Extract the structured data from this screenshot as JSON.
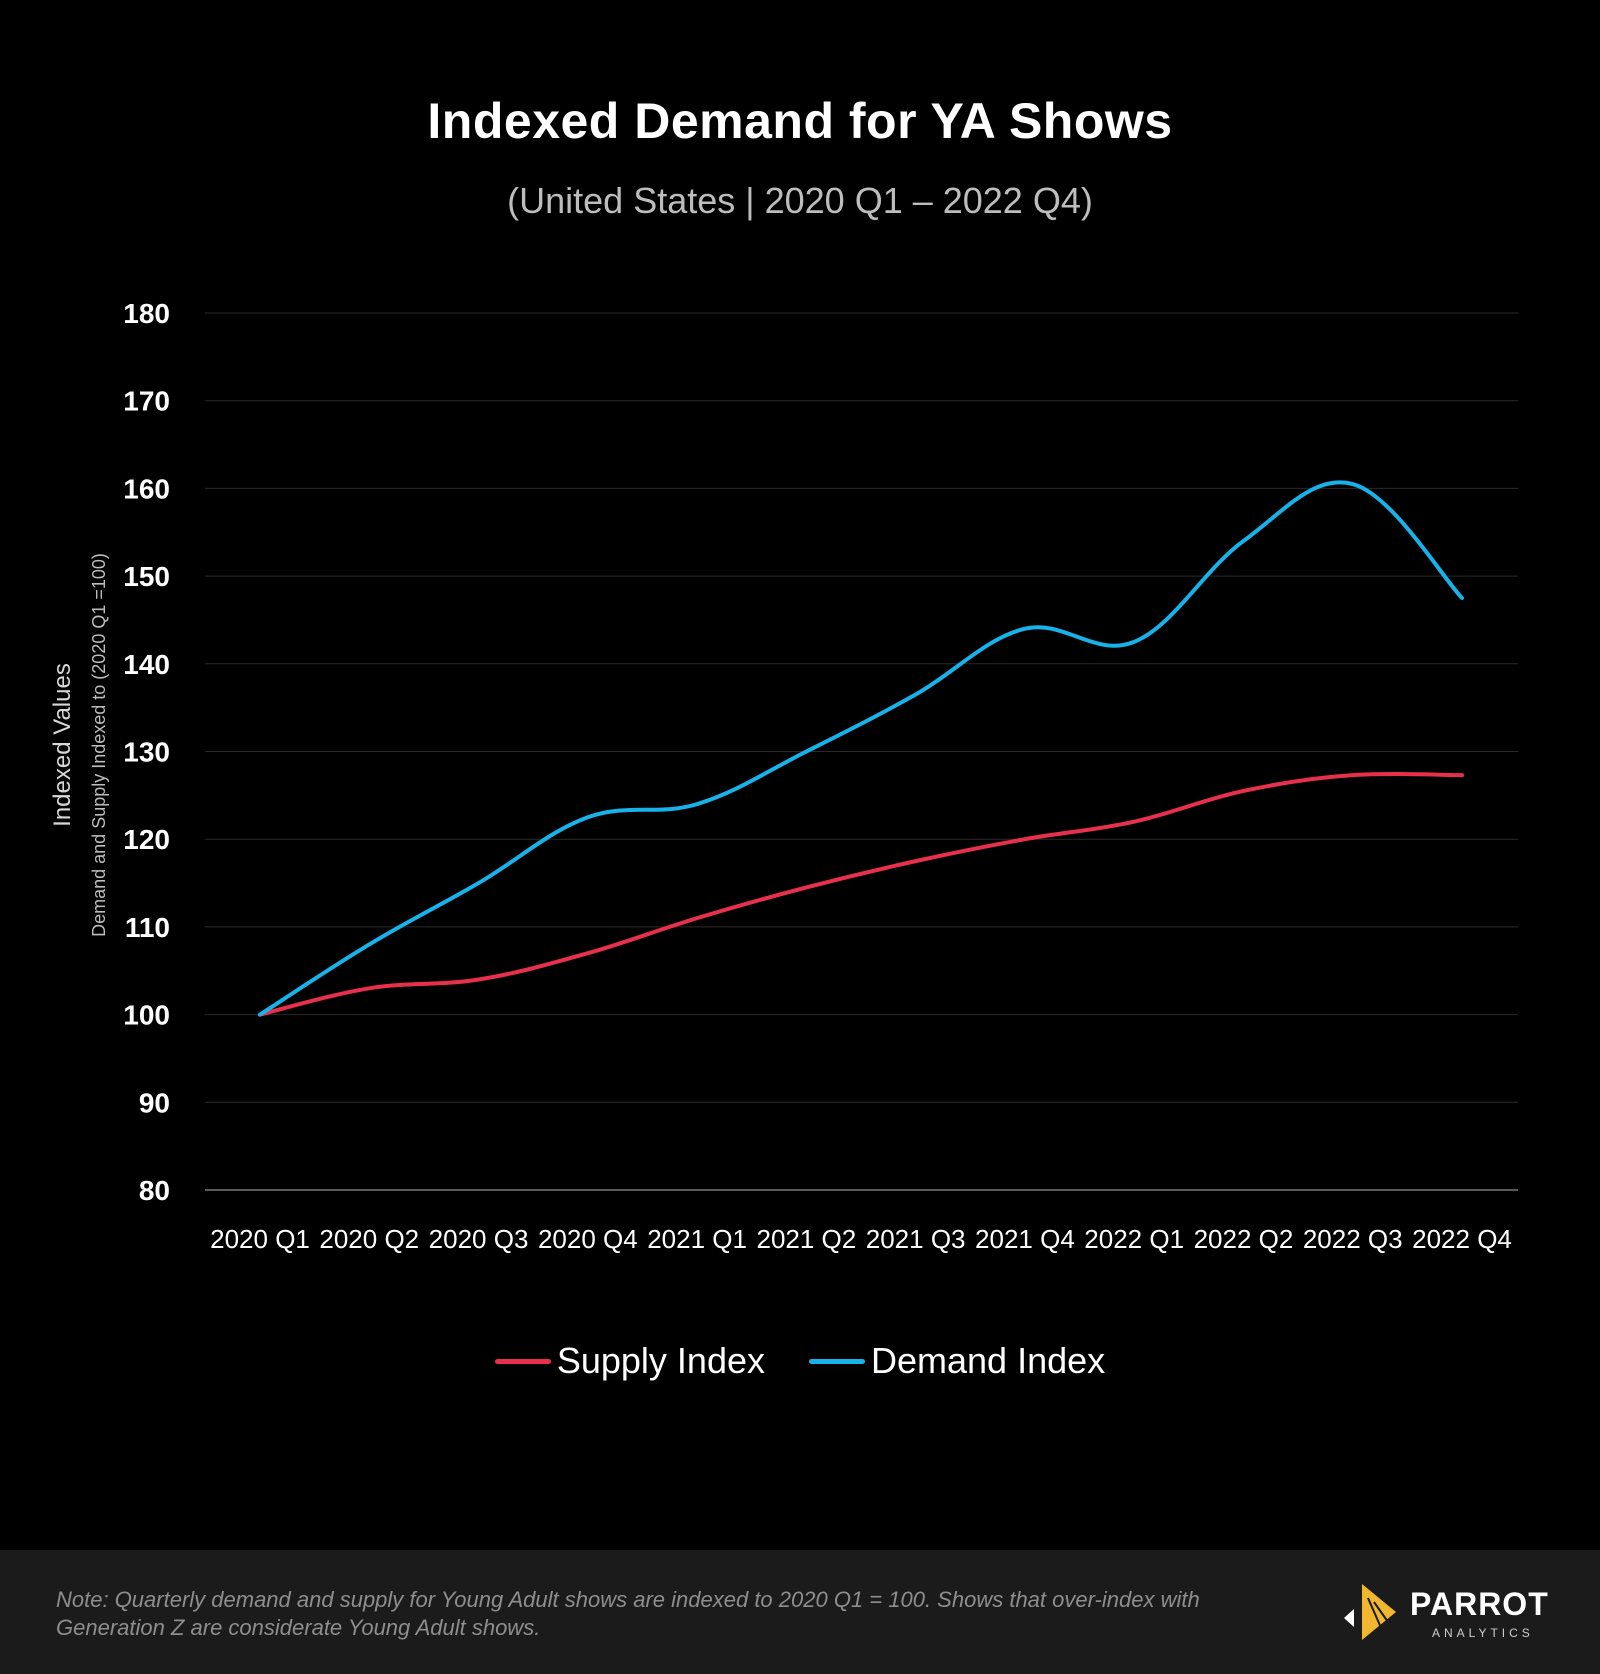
{
  "chart_data": {
    "type": "line",
    "title": "Indexed Demand for YA Shows",
    "subtitle": "(United States  |  2020 Q1 – 2022 Q4)",
    "ylabel": "Indexed Values",
    "ylabel_sub": "Demand and Supply Indexed to (2020 Q1  =100)",
    "xlabel": "",
    "ylim": [
      80,
      180
    ],
    "yticks": [
      80,
      90,
      100,
      110,
      120,
      130,
      140,
      150,
      160,
      170,
      180
    ],
    "grid": true,
    "legend_position": "bottom-center",
    "categories": [
      "2020 Q1",
      "2020 Q2",
      "2020 Q3",
      "2020 Q4",
      "2021 Q1",
      "2021 Q2",
      "2021 Q3",
      "2021 Q4",
      "2022 Q1",
      "2022 Q2",
      "2022 Q3",
      "2022 Q4"
    ],
    "series": [
      {
        "name": "Supply Index",
        "color": "#e8304d",
        "values": [
          100,
          103,
          104,
          107,
          111,
          114.5,
          117.5,
          120,
          122,
          125.5,
          127.3,
          127.3
        ]
      },
      {
        "name": "Demand Index",
        "color": "#17b2ea",
        "values": [
          100,
          108,
          115,
          122.5,
          124,
          130,
          136.5,
          144,
          142.5,
          154,
          160.5,
          147.5
        ]
      }
    ]
  },
  "footer": {
    "note": "Note: Quarterly demand and supply for Young Adult shows are indexed to 2020 Q1 = 100. Shows that over-index with Generation Z are considerate Young Adult shows.",
    "logo_name": "PARROT",
    "logo_sub": "ANALYTICS",
    "accent_color": "#f2b630"
  }
}
